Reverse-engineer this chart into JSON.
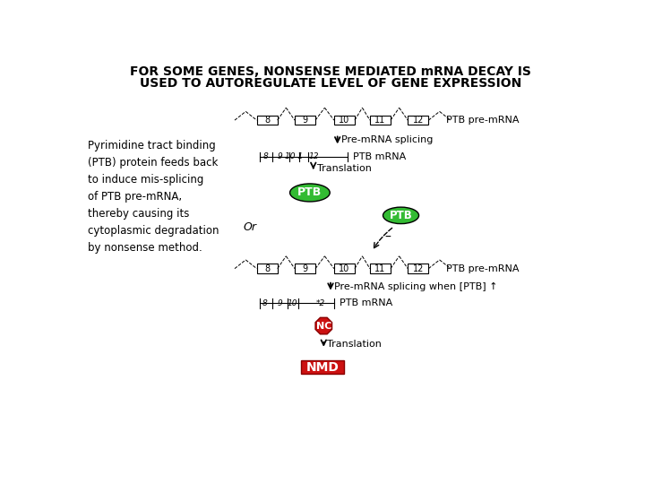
{
  "title_line1": "FOR SOME GENES, NONSENSE MEDIATED mRNA DECAY IS",
  "title_line2": "USED TO AUTOREGULATE LEVEL OF GENE EXPRESSION",
  "left_text": "Pyrimidine tract binding\n(PTB) protein feeds back\nto induce mis-splicing\nof PTB pre-mRNA,\nthereby causing its\ncytoplasmic degradation\nby nonsense method.",
  "bg_color": "#ffffff",
  "title_fontsize": 10,
  "exon_labels": [
    "8",
    "9",
    "10",
    "11",
    "12"
  ],
  "mrna_label_top": "PTB pre-mRNA",
  "mrna_label_top2": "PTB mRNA",
  "mrna_label_bot": "PTB pre-mRNA",
  "mrna_label_bot2": "PTB mRNA",
  "splicing_label1": "Pre-mRNA splicing",
  "translation_label1": "Translation",
  "splicing_label2": "Pre-mRNA splicing when [PTB] ↑",
  "translation_label2": "Translation",
  "ptb_green_color": "#33bb33",
  "nc_color": "#cc1111",
  "nmd_color": "#cc1111",
  "or_text": "Or",
  "ptb_label": "PTB",
  "nc_label": "NC",
  "nmd_label": "NMD"
}
